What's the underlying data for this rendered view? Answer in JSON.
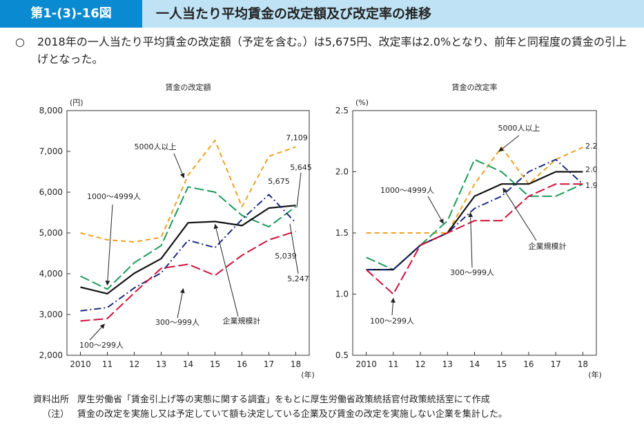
{
  "header": {
    "figure_number": "第1-(3)-16図",
    "title": "一人当たり平均賃金の改定額及び改定率の推移"
  },
  "summary": {
    "bullet": "○",
    "text": "2018年の一人当たり平均賃金の改定額（予定を含む。）は5,675円、改定率は2.0%となり、前年と同程度の賃金の引上げとなった。"
  },
  "footer": {
    "source_label": "資料出所",
    "source_text": "厚生労働省「賃金引上げ等の実態に関する調査」をもとに厚生労働省政策統括官付政策統括室にて作成",
    "note_label": "（注）",
    "note_text": "賃金の改定を実施し又は予定していて額も決定している企業及び賃金の改定を実施しない企業を集計した。"
  },
  "chart_data": [
    {
      "type": "line",
      "title": "賃金の改定額",
      "ylabel": "(円)",
      "xlabel": "(年)",
      "categories": [
        "2010",
        "11",
        "12",
        "13",
        "14",
        "15",
        "16",
        "17",
        "18"
      ],
      "ylim": [
        2000,
        8000
      ],
      "yticks": [
        2000,
        3000,
        4000,
        5000,
        6000,
        7000,
        8000
      ],
      "ytick_labels": [
        "2,000",
        "3,000",
        "4,000",
        "5,000",
        "6,000",
        "7,000",
        "8,000"
      ],
      "series": [
        {
          "name": "5000人以上",
          "color": "#f0a020",
          "dash": "dash",
          "values": [
            5000,
            4830,
            4780,
            4890,
            6420,
            7270,
            5640,
            6880,
            7109
          ]
        },
        {
          "name": "1000～4999人",
          "color": "#1a9a5a",
          "dash": "longdash",
          "values": [
            3940,
            3620,
            4270,
            4690,
            6130,
            6000,
            5430,
            5150,
            5645
          ]
        },
        {
          "name": "企業規模計",
          "color": "#111111",
          "dash": "solid",
          "values": [
            3670,
            3510,
            4010,
            4370,
            5250,
            5280,
            5180,
            5610,
            5675
          ]
        },
        {
          "name": "300～999人",
          "color": "#1a2a80",
          "dash": "dashdot",
          "values": [
            3090,
            3170,
            3650,
            4020,
            4820,
            4640,
            5330,
            5940,
            5247
          ]
        },
        {
          "name": "100～299人",
          "color": "#d0103a",
          "dash": "longdash",
          "values": [
            2840,
            2900,
            3530,
            4130,
            4230,
            3960,
            4450,
            4830,
            5039
          ]
        }
      ],
      "annotations": [
        "7,109",
        "5,675",
        "5,645",
        "5,039",
        "5,247"
      ]
    },
    {
      "type": "line",
      "title": "賃金の改定率",
      "ylabel": "(%)",
      "xlabel": "(年)",
      "categories": [
        "2010",
        "11",
        "12",
        "13",
        "14",
        "15",
        "16",
        "17",
        "18"
      ],
      "ylim": [
        0.5,
        2.5
      ],
      "yticks": [
        0.5,
        1.0,
        1.5,
        2.0,
        2.5
      ],
      "ytick_labels": [
        "0.5",
        "1.0",
        "1.5",
        "2.0",
        "2.5"
      ],
      "series": [
        {
          "name": "5000人以上",
          "color": "#f0a020",
          "dash": "dash",
          "values": [
            1.5,
            1.5,
            1.5,
            1.5,
            1.9,
            2.2,
            1.9,
            2.1,
            2.2
          ]
        },
        {
          "name": "1000～4999人",
          "color": "#1a9a5a",
          "dash": "longdash",
          "values": [
            1.3,
            1.2,
            1.4,
            1.6,
            2.1,
            2.0,
            1.8,
            1.8,
            1.9
          ]
        },
        {
          "name": "企業規模計",
          "color": "#111111",
          "dash": "solid",
          "values": [
            1.2,
            1.2,
            1.4,
            1.5,
            1.8,
            1.9,
            1.9,
            2.0,
            2.0
          ]
        },
        {
          "name": "300～999人",
          "color": "#1a2a80",
          "dash": "dashdot",
          "values": [
            1.2,
            1.2,
            1.4,
            1.5,
            1.7,
            1.8,
            2.0,
            2.1,
            1.9
          ]
        },
        {
          "name": "100～299人",
          "color": "#d0103a",
          "dash": "longdash",
          "values": [
            1.2,
            1.0,
            1.4,
            1.5,
            1.6,
            1.6,
            1.8,
            1.9,
            1.9
          ]
        }
      ],
      "annotations": [
        "2.2",
        "2.0",
        "1.9"
      ]
    }
  ]
}
